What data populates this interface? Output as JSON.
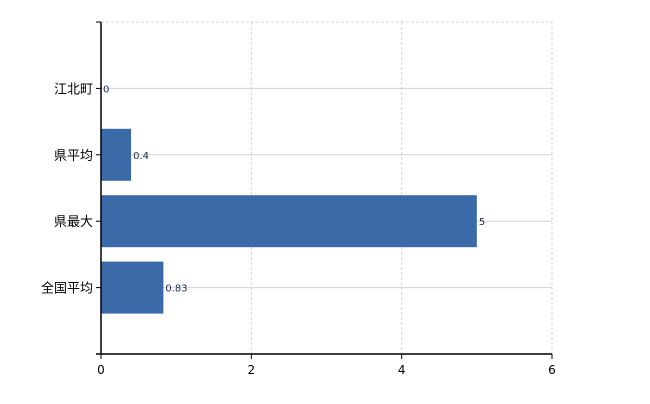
{
  "chart_data": {
    "type": "bar",
    "orientation": "horizontal",
    "categories": [
      "江北町",
      "県平均",
      "県最大",
      "全国平均"
    ],
    "values": [
      0,
      0.4,
      5,
      0.83
    ],
    "value_labels": [
      "0",
      "0.4",
      "5",
      "0.83"
    ],
    "xlim": [
      0,
      6
    ],
    "xticks": [
      "0",
      "2",
      "4",
      "6"
    ],
    "grid": true,
    "bar_color": "#3a6aa8",
    "label_color": "#1a2a5a"
  }
}
